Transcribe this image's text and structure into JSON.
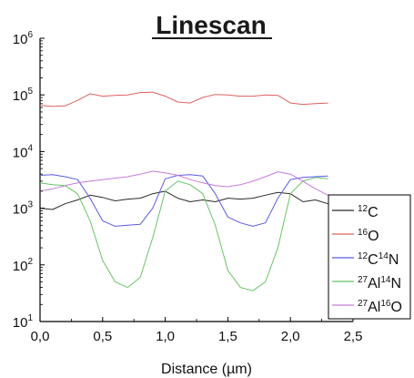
{
  "chart_data": {
    "type": "line",
    "title": "Linescan",
    "xlabel": "Distance (µm)",
    "ylabel": "",
    "xlim": [
      0.0,
      2.5
    ],
    "ylim": [
      10,
      1000000
    ],
    "y_scale": "log",
    "grid": false,
    "legend_position": "bottom-right",
    "x_ticks": [
      "0,0",
      "0,5",
      "1,0",
      "1,5",
      "2,0",
      "2,5"
    ],
    "y_ticks": [
      {
        "base": "10",
        "exp": "1"
      },
      {
        "base": "10",
        "exp": "2"
      },
      {
        "base": "10",
        "exp": "3"
      },
      {
        "base": "10",
        "exp": "4"
      },
      {
        "base": "10",
        "exp": "5"
      },
      {
        "base": "10",
        "exp": "6"
      }
    ],
    "x": [
      0.0,
      0.1,
      0.2,
      0.3,
      0.4,
      0.5,
      0.6,
      0.7,
      0.8,
      0.9,
      1.0,
      1.1,
      1.2,
      1.3,
      1.4,
      1.5,
      1.6,
      1.7,
      1.8,
      1.9,
      2.0,
      2.1,
      2.2,
      2.3
    ],
    "series": [
      {
        "label": {
          "parts": [
            {
              "text": "12",
              "sup": true
            },
            {
              "text": "C",
              "sup": false
            }
          ]
        },
        "color": "#2b2b2b",
        "values": [
          1000,
          950,
          1200,
          1400,
          1700,
          1550,
          1350,
          1450,
          1500,
          1800,
          2000,
          1500,
          1300,
          1400,
          1300,
          1500,
          1450,
          1500,
          1700,
          1900,
          1800,
          1300,
          1400,
          1200
        ]
      },
      {
        "label": {
          "parts": [
            {
              "text": "16",
              "sup": true
            },
            {
              "text": "O",
              "sup": false
            }
          ]
        },
        "color": "#e06060",
        "values": [
          65000,
          63000,
          64000,
          80000,
          105000,
          95000,
          98000,
          100000,
          110000,
          112000,
          95000,
          75000,
          72000,
          90000,
          102000,
          100000,
          95000,
          95000,
          100000,
          98000,
          72000,
          68000,
          70000,
          72000
        ]
      },
      {
        "label": {
          "parts": [
            {
              "text": "12",
              "sup": true
            },
            {
              "text": "C",
              "sup": false
            },
            {
              "text": "14",
              "sup": true
            },
            {
              "text": "N",
              "sup": false
            }
          ]
        },
        "color": "#5a5ae8",
        "values": [
          3800,
          3900,
          3600,
          3200,
          1500,
          600,
          480,
          500,
          520,
          1000,
          3300,
          3800,
          3900,
          3700,
          1800,
          700,
          550,
          480,
          550,
          1500,
          3200,
          3500,
          3600,
          3700
        ]
      },
      {
        "label": {
          "parts": [
            {
              "text": "27",
              "sup": true
            },
            {
              "text": "Al",
              "sup": false
            },
            {
              "text": "14",
              "sup": true
            },
            {
              "text": "N",
              "sup": false
            }
          ]
        },
        "color": "#66c466",
        "values": [
          2800,
          2600,
          2500,
          1800,
          600,
          120,
          50,
          40,
          60,
          300,
          2000,
          3000,
          2600,
          1800,
          500,
          80,
          40,
          35,
          50,
          200,
          1800,
          3000,
          3500,
          3300
        ]
      },
      {
        "label": {
          "parts": [
            {
              "text": "27",
              "sup": true
            },
            {
              "text": "Al",
              "sup": false
            },
            {
              "text": "16",
              "sup": true
            },
            {
              "text": "O",
              "sup": false
            }
          ]
        },
        "color": "#c77ad9",
        "values": [
          2000,
          2200,
          2500,
          2800,
          3000,
          3200,
          3400,
          3600,
          4000,
          4500,
          4200,
          3800,
          3200,
          2800,
          2500,
          2400,
          2600,
          3000,
          3600,
          4400,
          4000,
          3000,
          2200,
          1700
        ]
      }
    ]
  }
}
